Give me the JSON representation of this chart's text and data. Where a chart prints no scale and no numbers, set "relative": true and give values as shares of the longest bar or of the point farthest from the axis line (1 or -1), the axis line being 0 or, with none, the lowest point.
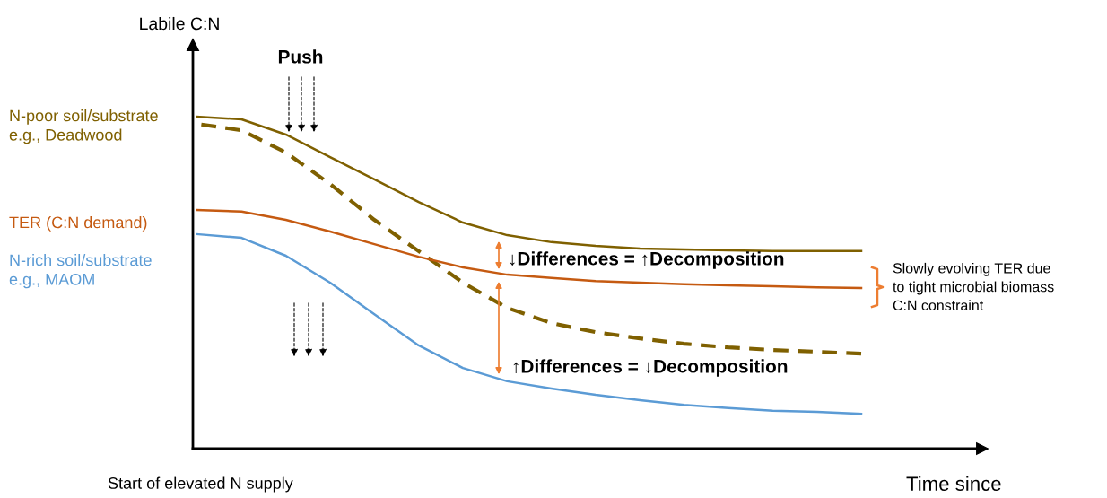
{
  "chart_data": {
    "type": "line",
    "relative": true,
    "xlabel": "Time since",
    "ylabel": "Labile C:N",
    "categories": [
      null,
      null,
      null,
      null,
      null,
      null,
      null,
      null,
      null,
      null,
      null,
      null,
      null,
      null,
      null,
      null
    ],
    "series": [
      {
        "name": "N-poor soil/substrate\ne.g., Deadwood",
        "color": "#7f6000",
        "values": [
          1,
          0.992,
          0.946,
          0.878,
          0.811,
          0.743,
          0.681,
          0.643,
          0.622,
          0.611,
          0.603,
          0.6,
          0.597,
          0.595,
          0.595,
          0.595
        ]
      },
      {
        "color": "#7f6000",
        "line_style": "dashed",
        "values": [
          0.978,
          0.959,
          0.892,
          0.797,
          0.689,
          0.595,
          0.5,
          0.424,
          0.378,
          0.351,
          0.332,
          0.316,
          0.305,
          0.297,
          0.292,
          0.286
        ]
      },
      {
        "name": "TER (C:N demand)",
        "color": "#c55a11",
        "values": [
          0.719,
          0.714,
          0.689,
          0.654,
          0.616,
          0.578,
          0.546,
          0.524,
          0.514,
          0.505,
          0.5,
          0.495,
          0.492,
          0.489,
          0.486,
          0.484
        ]
      },
      {
        "name": "N-rich soil/substrate\ne.g., MAOM",
        "color": "#5b9bd5",
        "values": [
          0.646,
          0.635,
          0.581,
          0.5,
          0.405,
          0.311,
          0.243,
          0.203,
          0.181,
          0.162,
          0.146,
          0.132,
          0.122,
          0.114,
          0.111,
          0.105
        ]
      }
    ],
    "annotations": [
      "Push",
      "↓Differences = ↑Decomposition",
      "↑Differences = ↓Decomposition",
      "Slowly evolving TER due\nto tight microbial biomass\nC:N constraint",
      "Start of elevated N supply"
    ]
  }
}
